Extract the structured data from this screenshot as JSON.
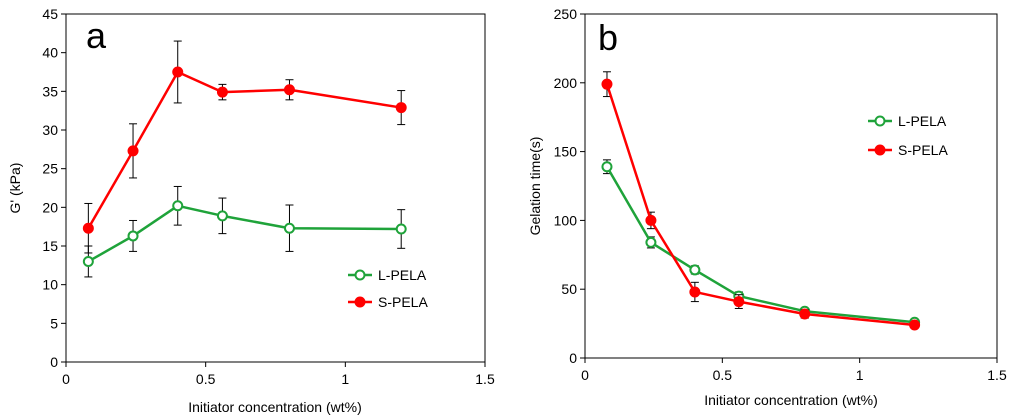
{
  "chart_data": [
    {
      "type": "line",
      "panel_label": "a",
      "xlabel": "Initiator concentration (wt%)",
      "ylabel": "G' (kPa)",
      "xlim": [
        0,
        1.5
      ],
      "ylim": [
        0,
        45
      ],
      "xticks": [
        0,
        0.5,
        1,
        1.5
      ],
      "xtick_labels": [
        "0",
        "0.5",
        "1",
        "1.5"
      ],
      "yticks": [
        0,
        5,
        10,
        15,
        20,
        25,
        30,
        35,
        40,
        45
      ],
      "ytick_labels": [
        "0",
        "5",
        "10",
        "15",
        "20",
        "25",
        "30",
        "35",
        "40",
        "45"
      ],
      "legend_position": "lower-right",
      "grid": false,
      "series": [
        {
          "name": "L-PELA",
          "color": "#1fa33a",
          "marker": "open-circle",
          "x": [
            0.08,
            0.24,
            0.4,
            0.56,
            0.8,
            1.2
          ],
          "y": [
            13.0,
            16.3,
            20.2,
            18.9,
            17.3,
            17.2
          ],
          "err": [
            2.0,
            2.0,
            2.5,
            2.3,
            3.0,
            2.5
          ]
        },
        {
          "name": "S-PELA",
          "color": "#ff0000",
          "marker": "filled-circle",
          "x": [
            0.08,
            0.24,
            0.4,
            0.56,
            0.8,
            1.2
          ],
          "y": [
            17.3,
            27.3,
            37.5,
            34.9,
            35.2,
            32.9
          ],
          "err": [
            3.2,
            3.5,
            4.0,
            1.0,
            1.3,
            2.2
          ]
        }
      ]
    },
    {
      "type": "line",
      "panel_label": "b",
      "xlabel": "Initiator concentration (wt%)",
      "ylabel": "Gelation time(s)",
      "xlim": [
        0,
        1.5
      ],
      "ylim": [
        0,
        250
      ],
      "xticks": [
        0,
        0.5,
        1,
        1.5
      ],
      "xtick_labels": [
        "0",
        "0.5",
        "1",
        "1.5"
      ],
      "yticks": [
        0,
        50,
        100,
        150,
        200,
        250
      ],
      "ytick_labels": [
        "0",
        "50",
        "100",
        "150",
        "200",
        "250"
      ],
      "legend_position": "upper-right",
      "grid": false,
      "series": [
        {
          "name": "L-PELA",
          "color": "#1fa33a",
          "marker": "open-circle",
          "x": [
            0.08,
            0.24,
            0.4,
            0.56,
            0.8,
            1.2
          ],
          "y": [
            139,
            84,
            64,
            45,
            34,
            26
          ],
          "err": [
            5,
            4,
            3,
            3,
            2,
            2
          ]
        },
        {
          "name": "S-PELA",
          "color": "#ff0000",
          "marker": "filled-circle",
          "x": [
            0.08,
            0.24,
            0.4,
            0.56,
            0.8,
            1.2
          ],
          "y": [
            199,
            100,
            48,
            41,
            32,
            24
          ],
          "err": [
            9,
            6,
            7,
            5,
            3,
            2
          ]
        }
      ]
    }
  ]
}
